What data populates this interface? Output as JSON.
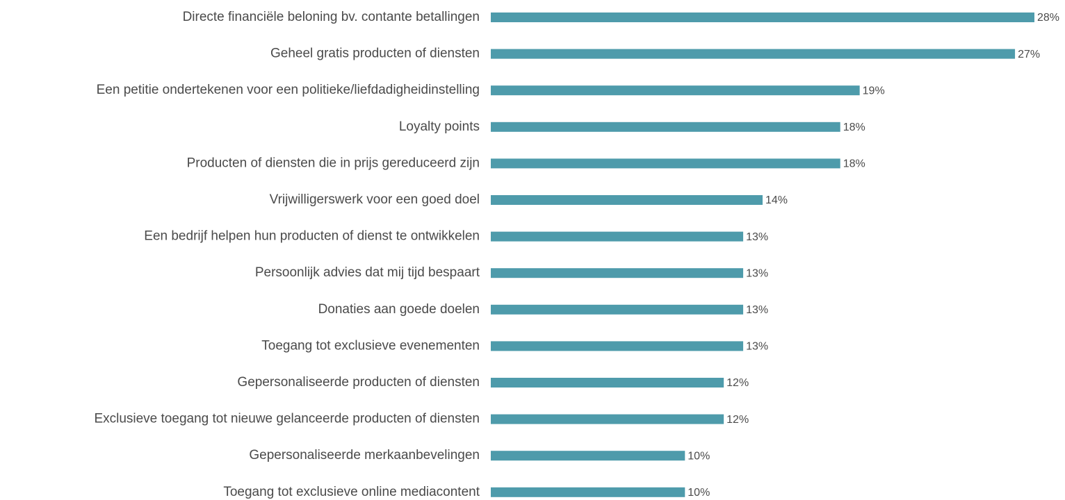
{
  "chart_data": {
    "type": "bar",
    "orientation": "horizontal",
    "color": "#4e9bab",
    "categories": [
      "Directe financiële beloning bv. contante betallingen",
      "Geheel gratis producten of diensten",
      "Een petitie ondertekenen voor een politieke/liefdadigheidinstelling",
      "Loyalty points",
      "Producten of diensten die in prijs gereduceerd zijn",
      "Vrijwilligerswerk voor een goed doel",
      "Een bedrijf helpen hun producten of dienst te ontwikkelen",
      "Persoonlijk advies dat mij tijd bespaart",
      "Donaties aan goede doelen",
      "Toegang tot exclusieve evenementen",
      "Gepersonaliseerde producten of diensten",
      "Exclusieve toegang tot nieuwe gelanceerde producten of diensten",
      "Gepersonaliseerde merkaanbevelingen",
      "Toegang tot exclusieve online mediacontent"
    ],
    "values": [
      28,
      27,
      19,
      18,
      18,
      14,
      13,
      13,
      13,
      13,
      12,
      12,
      10,
      10
    ],
    "value_labels": [
      "28%",
      "27%",
      "19%",
      "18%",
      "18%",
      "14%",
      "13%",
      "13%",
      "13%",
      "13%",
      "12%",
      "12%",
      "10%",
      "10%"
    ]
  }
}
